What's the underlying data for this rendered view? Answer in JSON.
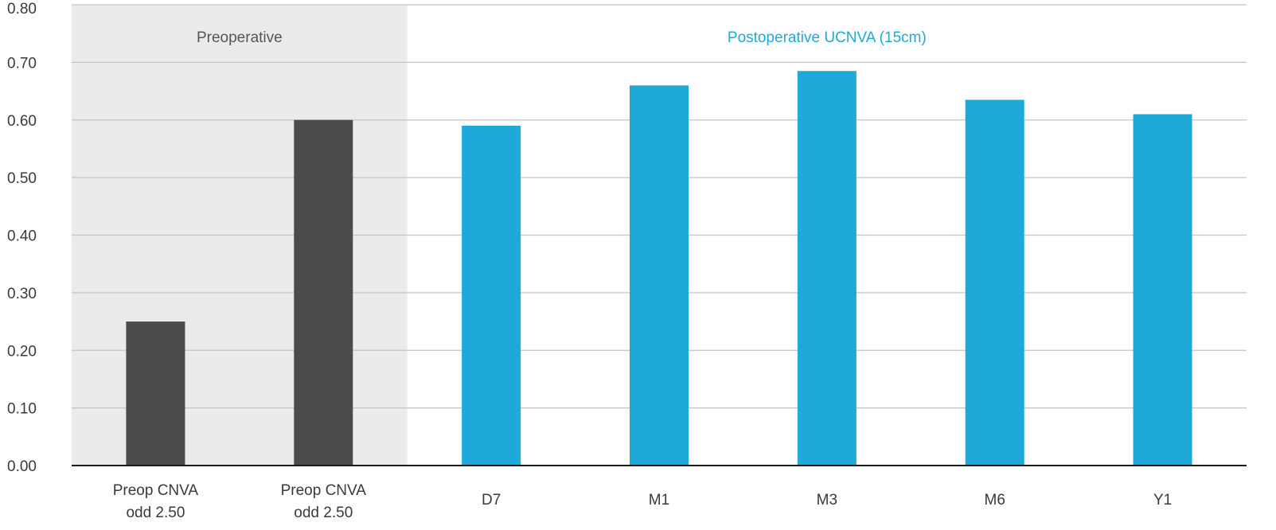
{
  "chart_data": {
    "type": "bar",
    "categories": [
      [
        "Preop CNVA",
        "odd 2.50"
      ],
      [
        "Preop CNVA",
        "odd 2.50"
      ],
      [
        "D7"
      ],
      [
        "M1"
      ],
      [
        "M3"
      ],
      [
        "M6"
      ],
      [
        "Y1"
      ]
    ],
    "values": [
      0.25,
      0.6,
      0.59,
      0.66,
      0.685,
      0.635,
      0.61
    ],
    "bar_colors": [
      "#4a4b4d",
      "#4a4b4d",
      "#1fa8da",
      "#1fa8da",
      "#1fa8da",
      "#1fa8da",
      "#1fa8da"
    ],
    "ylim": [
      0,
      0.8
    ],
    "yticks": [
      "0.00",
      "0.10",
      "0.20",
      "0.30",
      "0.40",
      "0.50",
      "0.60",
      "0.70",
      "0.80"
    ],
    "grid": true,
    "sections": [
      {
        "label": "Preoperative",
        "start_index": 0,
        "end_index": 1,
        "background": "#ebebeb",
        "label_color": "#555555"
      },
      {
        "label": "Postoperative UCNVA (15cm)",
        "start_index": 2,
        "end_index": 6,
        "background": "#ffffff",
        "label_color": "#1fa8da"
      }
    ]
  }
}
